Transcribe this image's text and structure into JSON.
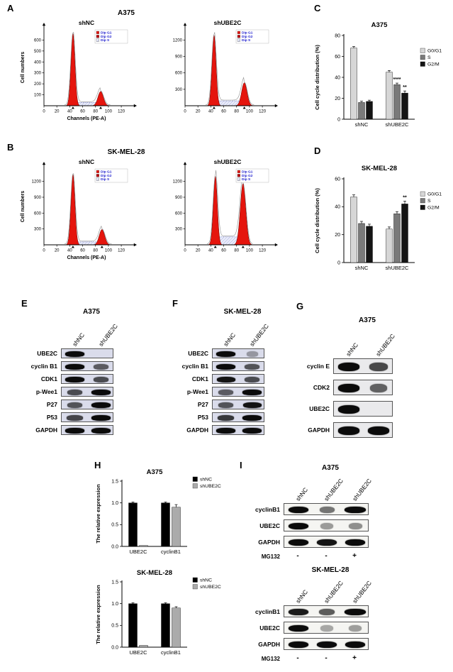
{
  "panelA": {
    "label": "A",
    "title": "A375",
    "ylabel": "Cell numbers",
    "xlabel": "Channels (PE-A)",
    "legend": {
      "g1": "Dip G1",
      "g2": "Dip G2",
      "s": "Dip S"
    },
    "plots": [
      {
        "title": "shNC",
        "yticks": [
          100,
          200,
          300,
          400,
          500,
          600
        ],
        "ymax": 700,
        "xticks": [
          0,
          20,
          40,
          60,
          80,
          100,
          120
        ],
        "xmax": 132,
        "g1x": 45,
        "g1h": 660,
        "g2x": 88,
        "g2h": 130,
        "sh": 30
      },
      {
        "title": "shUBE2C",
        "yticks": [
          300,
          600,
          900,
          1200
        ],
        "ymax": 1400,
        "xticks": [
          0,
          20,
          40,
          60,
          80,
          100,
          120
        ],
        "xmax": 132,
        "g1x": 45,
        "g1h": 1290,
        "g2x": 92,
        "g2h": 420,
        "sh": 90
      }
    ]
  },
  "panelB": {
    "label": "B",
    "title": "SK-MEL-28",
    "ylabel": "Cell numbers",
    "xlabel": "Channels (PE-A)",
    "legend": {
      "g1": "Dip G1",
      "g2": "Dip G2",
      "s": "Dip S"
    },
    "plots": [
      {
        "title": "shNC",
        "yticks": [
          300,
          600,
          900,
          1200
        ],
        "ymax": 1450,
        "xticks": [
          0,
          20,
          40,
          60,
          80,
          100,
          120
        ],
        "xmax": 132,
        "g1x": 45,
        "g1h": 1330,
        "g2x": 90,
        "g2h": 290,
        "sh": 55
      },
      {
        "title": "shUBE2C",
        "yticks": [
          300,
          600,
          900,
          1200
        ],
        "ymax": 1450,
        "xticks": [
          0,
          20,
          40,
          60,
          80,
          100,
          120
        ],
        "xmax": 132,
        "g1x": 47,
        "g1h": 1300,
        "g2x": 90,
        "g2h": 1160,
        "sh": 150
      }
    ]
  },
  "chartC": {
    "panel_label": "C",
    "type": "bar",
    "title": "A375",
    "ylabel": "Cell cycle distribution (%)",
    "ylim": [
      0,
      80
    ],
    "yticks": [
      "0",
      "20",
      "40",
      "60",
      "80"
    ],
    "categories": [
      "shNC",
      "shUBE2C"
    ],
    "series": [
      {
        "name": "G0/G1",
        "color": "#d6d6d6",
        "values": [
          68,
          45
        ],
        "errors": [
          1.5,
          1.5
        ]
      },
      {
        "name": "S",
        "color": "#7a7a7a",
        "values": [
          16,
          33
        ],
        "errors": [
          1.2,
          1.5
        ]
      },
      {
        "name": "G2/M",
        "color": "#141414",
        "values": [
          17,
          25
        ],
        "errors": [
          1.2,
          2
        ]
      }
    ],
    "annotations": [
      {
        "cat": 1,
        "series": 1,
        "text": "****"
      },
      {
        "cat": 1,
        "series": 2,
        "text": "**"
      }
    ]
  },
  "chartD": {
    "panel_label": "D",
    "type": "bar",
    "title": "SK-MEL-28",
    "ylabel": "Cell cycle distribution (%)",
    "ylim": [
      0,
      60
    ],
    "yticks": [
      "0",
      "20",
      "40",
      "60"
    ],
    "categories": [
      "shNC",
      "shUBE2C"
    ],
    "series": [
      {
        "name": "G0/G1",
        "color": "#d6d6d6",
        "values": [
          47,
          24
        ],
        "errors": [
          1.5,
          1.5
        ]
      },
      {
        "name": "S",
        "color": "#7a7a7a",
        "values": [
          28,
          35
        ],
        "errors": [
          1.5,
          1.5
        ]
      },
      {
        "name": "G2/M",
        "color": "#141414",
        "values": [
          26,
          42
        ],
        "errors": [
          1.5,
          2
        ]
      }
    ],
    "annotations": [
      {
        "cat": 1,
        "series": 2,
        "text": "**"
      }
    ]
  },
  "panelE": {
    "label": "E",
    "title": "A375",
    "col_labels": [
      "shNC",
      "shUBE2C"
    ],
    "rows": [
      {
        "label": "UBE2C",
        "bands": [
          1,
          0
        ]
      },
      {
        "label": "cyclin B1",
        "bands": [
          1,
          0.45
        ]
      },
      {
        "label": "CDK1",
        "bands": [
          1,
          0.55
        ]
      },
      {
        "label": "p-Wee1",
        "bands": [
          0.55,
          1
        ]
      },
      {
        "label": "P27",
        "bands": [
          0.5,
          1
        ]
      },
      {
        "label": "P53",
        "bands": [
          0.6,
          1
        ]
      },
      {
        "label": "GAPDH",
        "bands": [
          1,
          1
        ]
      }
    ]
  },
  "panelF": {
    "label": "F",
    "title": "SK-MEL-28",
    "col_labels": [
      "shNC",
      "shUBE2C"
    ],
    "rows": [
      {
        "label": "UBE2C",
        "bands": [
          1,
          0.05
        ]
      },
      {
        "label": "cyclin B1",
        "bands": [
          1,
          0.5
        ]
      },
      {
        "label": "CDK1",
        "bands": [
          0.95,
          0.55
        ]
      },
      {
        "label": "p-Wee1",
        "bands": [
          0.45,
          1
        ]
      },
      {
        "label": "P27",
        "bands": [
          0.5,
          0.95
        ]
      },
      {
        "label": "P53",
        "bands": [
          0.7,
          1
        ]
      },
      {
        "label": "GAPDH",
        "bands": [
          1,
          1
        ]
      }
    ]
  },
  "panelG": {
    "label": "G",
    "title": "A375",
    "col_labels": [
      "shNC",
      "shUBE2C"
    ],
    "rows": [
      {
        "label": "cyclin E",
        "bands": [
          1,
          0.6
        ]
      },
      {
        "label": "CDK2",
        "bands": [
          1,
          0.45
        ]
      },
      {
        "label": "UBE2C",
        "bands": [
          1,
          0
        ]
      },
      {
        "label": "GAPDH",
        "bands": [
          1,
          1
        ]
      }
    ]
  },
  "panelH": {
    "label": "H",
    "charts": [
      {
        "type": "bar",
        "title": "A375",
        "ylabel": "The relative expression",
        "ylim": [
          0,
          1.5
        ],
        "yticks": [
          "0.0",
          "0.5",
          "1.0",
          "1.5"
        ],
        "categories": [
          "UBE2C",
          "cyclinB1"
        ],
        "series": [
          {
            "name": "shNC",
            "color": "#000000",
            "values": [
              1.0,
              1.0
            ],
            "errors": [
              0.02,
              0.02
            ]
          },
          {
            "name": "shUBE2C",
            "color": "#ababab",
            "values": [
              0.02,
              0.9
            ],
            "errors": [
              0.01,
              0.06
            ]
          }
        ]
      },
      {
        "type": "bar",
        "title": "SK-MEL-28",
        "ylabel": "The relative expression",
        "ylim": [
          0,
          1.5
        ],
        "yticks": [
          "0.0",
          "0.5",
          "1.0",
          "1.5"
        ],
        "categories": [
          "UBE2C",
          "cyclinB1"
        ],
        "series": [
          {
            "name": "shNC",
            "color": "#000000",
            "values": [
              1.0,
              1.0
            ],
            "errors": [
              0.02,
              0.02
            ]
          },
          {
            "name": "shUBE2C",
            "color": "#ababab",
            "values": [
              0.04,
              0.9
            ],
            "errors": [
              0.01,
              0.03
            ]
          }
        ]
      }
    ]
  },
  "panelI": {
    "label": "I",
    "groups": [
      {
        "title": "A375",
        "col_labels": [
          "shNC",
          "shUBE2C",
          "shUBE2C"
        ],
        "rows": [
          {
            "label": "cyclinB1",
            "bands": [
              1,
              0.35,
              1.05
            ]
          },
          {
            "label": "UBE2C",
            "bands": [
              1,
              0.12,
              0.18
            ]
          },
          {
            "label": "GAPDH",
            "bands": [
              1,
              0.95,
              1
            ]
          }
        ],
        "treatment_label": "MG132",
        "treatment": [
          "-",
          "-",
          "+"
        ]
      },
      {
        "title": "SK-MEL-28",
        "col_labels": [
          "shNC",
          "shUBE2C",
          "shUBE2C"
        ],
        "rows": [
          {
            "label": "cyclinB1",
            "bands": [
              0.9,
              0.5,
              1.1
            ]
          },
          {
            "label": "UBE2C",
            "bands": [
              1,
              0.05,
              0.1
            ]
          },
          {
            "label": "GAPDH",
            "bands": [
              1,
              1,
              1
            ]
          }
        ],
        "treatment_label": "MG132",
        "treatment": [
          "-",
          "-",
          "+"
        ]
      }
    ]
  }
}
